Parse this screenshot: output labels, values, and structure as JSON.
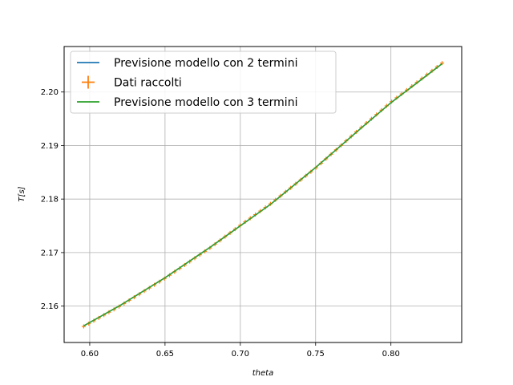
{
  "chart_data": {
    "type": "line",
    "title": "",
    "xlabel": "theta",
    "ylabel": "T[s]",
    "xlim": [
      0.583,
      0.847
    ],
    "ylim": [
      2.1532,
      2.2085
    ],
    "x_ticks": [
      0.6,
      0.65,
      0.7,
      0.75,
      0.8
    ],
    "x_tick_labels": [
      "0.60",
      "0.65",
      "0.70",
      "0.75",
      "0.80"
    ],
    "y_ticks": [
      2.16,
      2.17,
      2.18,
      2.19,
      2.2
    ],
    "y_tick_labels": [
      "2.16",
      "2.17",
      "2.18",
      "2.19",
      "2.20"
    ],
    "grid": true,
    "legend_position": "top-left",
    "colors": {
      "blue": "#1f77b4",
      "orange": "#ff7f0e",
      "green": "#2ca02c"
    },
    "x": [
      0.596,
      0.62,
      0.65,
      0.68,
      0.7,
      0.72,
      0.75,
      0.78,
      0.8,
      0.834
    ],
    "series": [
      {
        "name": "Previsione modello con 2 termini",
        "style": "line",
        "color": "#1f77b4",
        "values": [
          2.1563,
          2.1601,
          2.1653,
          2.171,
          2.175,
          2.179,
          2.1859,
          2.1932,
          2.198,
          2.2053
        ]
      },
      {
        "name": "Dati raccolti",
        "style": "errorbar",
        "color": "#ff7f0e",
        "values": [
          2.1562,
          2.16,
          2.1652,
          2.1709,
          2.1751,
          2.1791,
          2.1858,
          2.1933,
          2.1981,
          2.2054
        ]
      },
      {
        "name": "Previsione modello con 3 termini",
        "style": "line",
        "color": "#2ca02c",
        "values": [
          2.1563,
          2.1601,
          2.1653,
          2.171,
          2.175,
          2.179,
          2.1859,
          2.1932,
          2.198,
          2.2053
        ]
      }
    ]
  }
}
